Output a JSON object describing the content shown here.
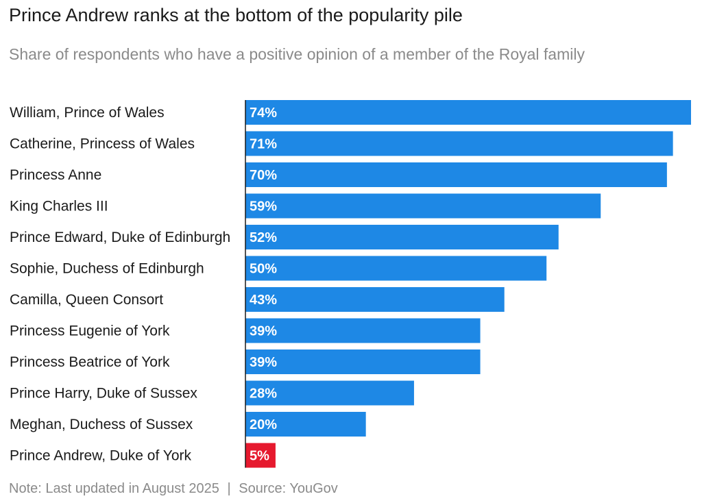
{
  "chart_data": {
    "type": "bar",
    "orientation": "horizontal",
    "title": "Prince Andrew ranks at the bottom of the popularity pile",
    "subtitle": "Share of respondents who have a positive opinion of a member of the Royal family",
    "categories": [
      "William, Prince of Wales",
      "Catherine, Princess of Wales",
      "Princess Anne",
      "King Charles III",
      "Prince Edward, Duke of Edinburgh",
      "Sophie, Duchess of Edinburgh",
      "Camilla, Queen Consort",
      "Princess Eugenie of York",
      "Princess Beatrice of York",
      "Prince Harry, Duke of Sussex",
      "Meghan, Duchess of Sussex",
      "Prince Andrew, Duke of York"
    ],
    "values": [
      74,
      71,
      70,
      59,
      52,
      50,
      43,
      39,
      39,
      28,
      20,
      5
    ],
    "value_labels": [
      "74%",
      "71%",
      "70%",
      "59%",
      "52%",
      "50%",
      "43%",
      "39%",
      "39%",
      "28%",
      "20%",
      "5%"
    ],
    "highlight_index": 11,
    "xlim": [
      0,
      74
    ],
    "unit": "%",
    "xlabel": "",
    "ylabel": "",
    "grid": false
  },
  "colors": {
    "bar": "#1e88e5",
    "highlight": "#e6192e",
    "axis": "#1a1a1a"
  },
  "footer": {
    "note": "Note: Last updated in August 2025",
    "separator": "|",
    "source": "Source: YouGov"
  }
}
